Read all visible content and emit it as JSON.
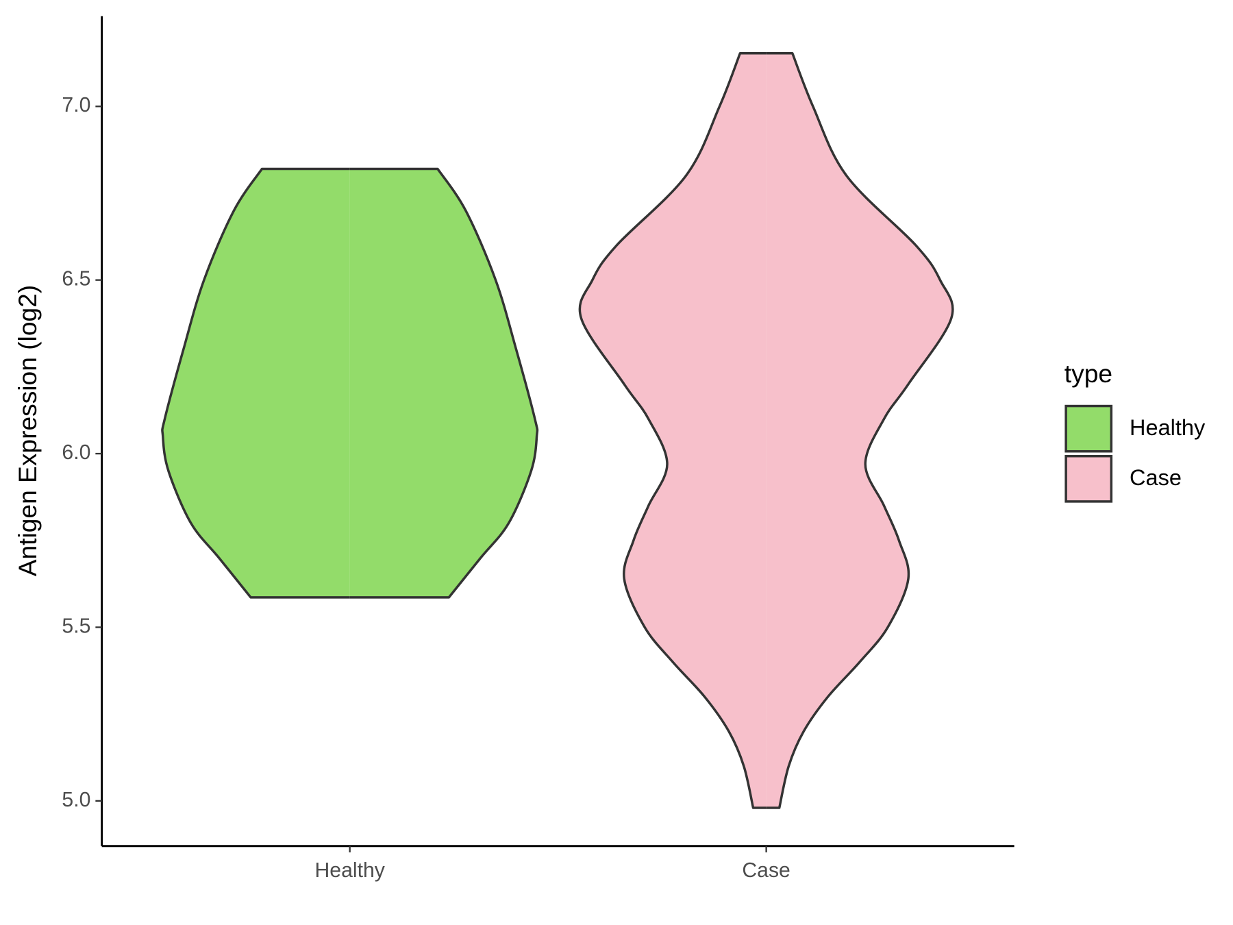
{
  "chart_data": {
    "type": "violin",
    "y_label": "Antigen Expression (log2)",
    "categories": [
      "Healthy",
      "Case"
    ],
    "ylim": [
      4.87,
      7.26
    ],
    "yticks": [
      {
        "value": 5,
        "label": "5.0"
      },
      {
        "value": 5.5,
        "label": "5.5"
      },
      {
        "value": 6,
        "label": "6.0"
      },
      {
        "value": 6.5,
        "label": "6.5"
      },
      {
        "value": 7,
        "label": "7.0"
      }
    ],
    "legend_title": "type",
    "legend_position": "right",
    "series": [
      {
        "name": "Healthy",
        "color": "#93dc6a",
        "y": [
          6.82,
          6.7,
          6.5,
          6.3,
          6.1,
          6.05,
          5.95,
          5.8,
          5.7,
          5.586
        ],
        "width": [
          0.47,
          0.62,
          0.78,
          0.89,
          0.99,
          1.0,
          0.97,
          0.85,
          0.7,
          0.53
        ]
      },
      {
        "name": "Case",
        "color": "#f7c0cb",
        "y": [
          7.153,
          7.0,
          6.8,
          6.6,
          6.5,
          6.39,
          6.2,
          6.1,
          5.97,
          5.85,
          5.75,
          5.64,
          5.5,
          5.4,
          5.3,
          5.2,
          5.1,
          4.98
        ],
        "width": [
          0.14,
          0.25,
          0.43,
          0.8,
          0.93,
          0.99,
          0.76,
          0.63,
          0.53,
          0.63,
          0.71,
          0.76,
          0.65,
          0.5,
          0.33,
          0.2,
          0.12,
          0.07
        ]
      }
    ]
  }
}
